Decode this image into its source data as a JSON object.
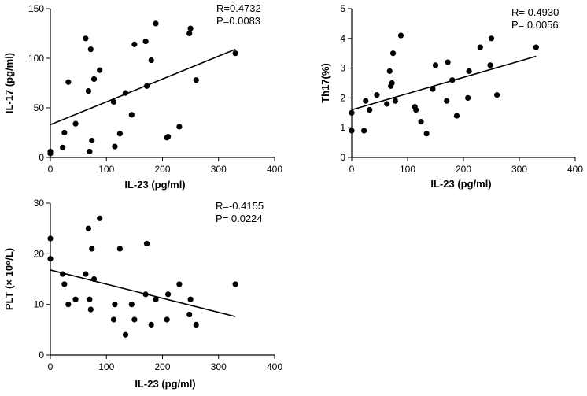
{
  "chart_data": [
    {
      "type": "scatter",
      "title": "",
      "xlabel": "IL-23 (pg/ml)",
      "ylabel": "IL-17 (pg/ml)",
      "xlim": [
        0,
        400
      ],
      "ylim": [
        0,
        150
      ],
      "xticks": [
        0,
        100,
        200,
        300,
        400
      ],
      "yticks": [
        0,
        50,
        100,
        150
      ],
      "annotation": [
        "R=0.4732",
        "P=0.0083"
      ],
      "regression": {
        "x": [
          0,
          330
        ],
        "y": [
          33,
          109
        ]
      },
      "points": [
        {
          "x": 0,
          "y": 6
        },
        {
          "x": 0,
          "y": 4
        },
        {
          "x": 22,
          "y": 10
        },
        {
          "x": 25,
          "y": 25
        },
        {
          "x": 32,
          "y": 76
        },
        {
          "x": 45,
          "y": 34
        },
        {
          "x": 63,
          "y": 120
        },
        {
          "x": 68,
          "y": 67
        },
        {
          "x": 70,
          "y": 6
        },
        {
          "x": 72,
          "y": 109
        },
        {
          "x": 74,
          "y": 17
        },
        {
          "x": 78,
          "y": 79
        },
        {
          "x": 88,
          "y": 88
        },
        {
          "x": 113,
          "y": 56
        },
        {
          "x": 115,
          "y": 11
        },
        {
          "x": 124,
          "y": 24
        },
        {
          "x": 134,
          "y": 65
        },
        {
          "x": 145,
          "y": 43
        },
        {
          "x": 150,
          "y": 114
        },
        {
          "x": 170,
          "y": 117
        },
        {
          "x": 172,
          "y": 72
        },
        {
          "x": 180,
          "y": 98
        },
        {
          "x": 188,
          "y": 135
        },
        {
          "x": 208,
          "y": 20
        },
        {
          "x": 210,
          "y": 21
        },
        {
          "x": 230,
          "y": 31
        },
        {
          "x": 248,
          "y": 125
        },
        {
          "x": 250,
          "y": 130
        },
        {
          "x": 260,
          "y": 78
        },
        {
          "x": 330,
          "y": 105
        }
      ]
    },
    {
      "type": "scatter",
      "title": "",
      "xlabel": "IL-23 (pg/ml)",
      "ylabel": "Th17(%)",
      "xlim": [
        0,
        400
      ],
      "ylim": [
        0,
        5
      ],
      "xticks": [
        0,
        100,
        200,
        300,
        400
      ],
      "yticks": [
        0,
        1,
        2,
        3,
        4,
        5
      ],
      "annotation": [
        "R= 0.4930",
        "P= 0.0056"
      ],
      "regression": {
        "x": [
          0,
          330
        ],
        "y": [
          1.6,
          3.4
        ]
      },
      "points": [
        {
          "x": 0,
          "y": 1.5
        },
        {
          "x": 0,
          "y": 0.9
        },
        {
          "x": 22,
          "y": 0.9
        },
        {
          "x": 25,
          "y": 1.9
        },
        {
          "x": 32,
          "y": 1.6
        },
        {
          "x": 45,
          "y": 2.1
        },
        {
          "x": 63,
          "y": 1.8
        },
        {
          "x": 68,
          "y": 2.9
        },
        {
          "x": 70,
          "y": 2.4
        },
        {
          "x": 72,
          "y": 2.5
        },
        {
          "x": 74,
          "y": 3.5
        },
        {
          "x": 78,
          "y": 1.9
        },
        {
          "x": 88,
          "y": 4.1
        },
        {
          "x": 113,
          "y": 1.7
        },
        {
          "x": 115,
          "y": 1.6
        },
        {
          "x": 124,
          "y": 1.2
        },
        {
          "x": 134,
          "y": 0.8
        },
        {
          "x": 145,
          "y": 2.3
        },
        {
          "x": 150,
          "y": 3.1
        },
        {
          "x": 170,
          "y": 1.9
        },
        {
          "x": 172,
          "y": 3.2
        },
        {
          "x": 180,
          "y": 2.6
        },
        {
          "x": 188,
          "y": 1.4
        },
        {
          "x": 208,
          "y": 2.0
        },
        {
          "x": 210,
          "y": 2.9
        },
        {
          "x": 230,
          "y": 3.7
        },
        {
          "x": 248,
          "y": 3.1
        },
        {
          "x": 250,
          "y": 4.0
        },
        {
          "x": 260,
          "y": 2.1
        },
        {
          "x": 330,
          "y": 3.7
        }
      ]
    },
    {
      "type": "scatter",
      "title": "",
      "xlabel": "IL-23 (pg/ml)",
      "ylabel": "PLT (× 10⁹/L)",
      "xlim": [
        0,
        400
      ],
      "ylim": [
        0,
        30
      ],
      "xticks": [
        0,
        100,
        200,
        300,
        400
      ],
      "yticks": [
        0,
        10,
        20,
        30
      ],
      "annotation": [
        "R=-0.4155",
        "P= 0.0224"
      ],
      "regression": {
        "x": [
          0,
          330
        ],
        "y": [
          16.8,
          7.6
        ]
      },
      "points": [
        {
          "x": 0,
          "y": 23
        },
        {
          "x": 0,
          "y": 19
        },
        {
          "x": 22,
          "y": 16
        },
        {
          "x": 25,
          "y": 14
        },
        {
          "x": 32,
          "y": 10
        },
        {
          "x": 45,
          "y": 11
        },
        {
          "x": 63,
          "y": 16
        },
        {
          "x": 68,
          "y": 25
        },
        {
          "x": 70,
          "y": 11
        },
        {
          "x": 72,
          "y": 9
        },
        {
          "x": 74,
          "y": 21
        },
        {
          "x": 78,
          "y": 15
        },
        {
          "x": 88,
          "y": 27
        },
        {
          "x": 113,
          "y": 7
        },
        {
          "x": 115,
          "y": 10
        },
        {
          "x": 124,
          "y": 21
        },
        {
          "x": 134,
          "y": 4
        },
        {
          "x": 145,
          "y": 10
        },
        {
          "x": 150,
          "y": 7
        },
        {
          "x": 170,
          "y": 12
        },
        {
          "x": 172,
          "y": 22
        },
        {
          "x": 180,
          "y": 6
        },
        {
          "x": 188,
          "y": 11
        },
        {
          "x": 208,
          "y": 7
        },
        {
          "x": 210,
          "y": 12
        },
        {
          "x": 230,
          "y": 14
        },
        {
          "x": 248,
          "y": 8
        },
        {
          "x": 250,
          "y": 11
        },
        {
          "x": 260,
          "y": 6
        },
        {
          "x": 330,
          "y": 14
        }
      ]
    }
  ]
}
